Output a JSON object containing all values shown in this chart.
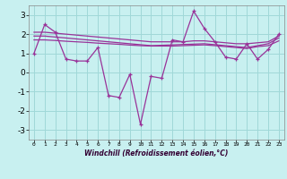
{
  "xlabel": "Windchill (Refroidissement éolien,°C)",
  "background_color": "#c8f0f0",
  "grid_color": "#a0d8d8",
  "line_color": "#993399",
  "x_hours": [
    0,
    1,
    2,
    3,
    4,
    5,
    6,
    7,
    8,
    9,
    10,
    11,
    12,
    13,
    14,
    15,
    16,
    17,
    18,
    19,
    20,
    21,
    22,
    23
  ],
  "ylim": [
    -3.5,
    3.5
  ],
  "yticks": [
    -3,
    -2,
    -1,
    0,
    1,
    2,
    3
  ],
  "line_main": [
    1.0,
    2.5,
    2.1,
    0.7,
    0.6,
    0.6,
    1.3,
    -1.2,
    -1.3,
    -0.1,
    -2.7,
    -0.2,
    -0.3,
    1.7,
    1.6,
    3.2,
    2.3,
    1.6,
    0.8,
    0.7,
    1.5,
    0.7,
    1.2,
    2.0
  ],
  "line_trend1": [
    2.1,
    2.1,
    2.05,
    2.0,
    1.95,
    1.9,
    1.85,
    1.8,
    1.75,
    1.7,
    1.65,
    1.6,
    1.6,
    1.6,
    1.6,
    1.65,
    1.65,
    1.6,
    1.55,
    1.5,
    1.5,
    1.55,
    1.6,
    1.9
  ],
  "line_trend2": [
    1.9,
    1.9,
    1.85,
    1.8,
    1.75,
    1.7,
    1.65,
    1.6,
    1.55,
    1.5,
    1.45,
    1.4,
    1.42,
    1.44,
    1.46,
    1.48,
    1.5,
    1.45,
    1.4,
    1.35,
    1.3,
    1.4,
    1.5,
    1.8
  ],
  "line_trend3": [
    1.7,
    1.7,
    1.67,
    1.63,
    1.6,
    1.57,
    1.53,
    1.5,
    1.47,
    1.43,
    1.4,
    1.38,
    1.38,
    1.38,
    1.4,
    1.42,
    1.44,
    1.4,
    1.35,
    1.3,
    1.25,
    1.35,
    1.4,
    1.65
  ]
}
